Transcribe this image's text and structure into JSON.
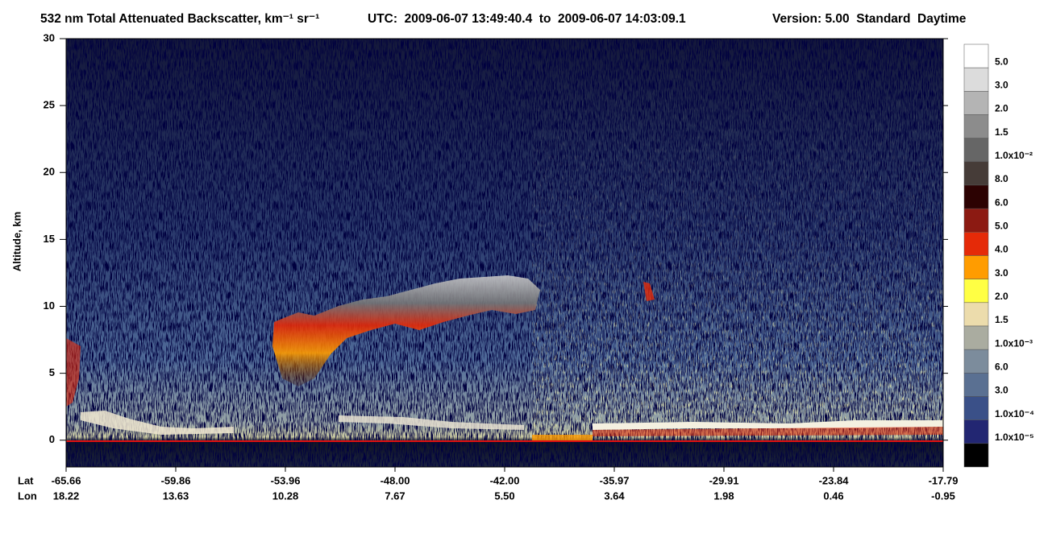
{
  "chart_data": {
    "type": "curtain",
    "title": "532 nm Total Attenuated Backscatter, km⁻¹ sr⁻¹",
    "time_range": "UTC:  2009-06-07 13:49:40.4  to  2009-06-07 14:03:09.1",
    "version": "Version: 5.00  Standard  Daytime",
    "ylabel": "Altitude, km",
    "ylim": [
      -2,
      30
    ],
    "yticks": [
      0,
      5,
      10,
      15,
      20,
      25,
      30
    ],
    "lat_label": "Lat",
    "lon_label": "Lon",
    "lat_ticks": [
      "-65.66",
      "-59.86",
      "-53.96",
      "-48.00",
      "-42.00",
      "-35.97",
      "-29.91",
      "-23.84",
      "-17.79"
    ],
    "lon_ticks": [
      "18.22",
      "13.63",
      "10.28",
      "7.67",
      "5.50",
      "3.64",
      "1.98",
      "0.46",
      "-0.95"
    ],
    "colorbar_colors": [
      "#ffffff",
      "#dcdcdc",
      "#b4b4b4",
      "#8c8c8c",
      "#666666",
      "#463c38",
      "#2c0202",
      "#8c1a12",
      "#e52a08",
      "#ff9c00",
      "#ffff44",
      "#ecdcac",
      "#aaaca0",
      "#7c8c9c",
      "#5a7092",
      "#3a5088",
      "#222672",
      "#000000"
    ],
    "colorbar_labels": [
      "5.0",
      "3.0",
      "2.0",
      "1.5",
      "1.0x10⁻²",
      "8.0",
      "6.0",
      "5.0",
      "4.0",
      "3.0",
      "2.0",
      "1.5",
      "1.0x10⁻³",
      "6.0",
      "3.0",
      "1.0x10⁻⁴",
      "1.0x10⁻⁵"
    ]
  }
}
